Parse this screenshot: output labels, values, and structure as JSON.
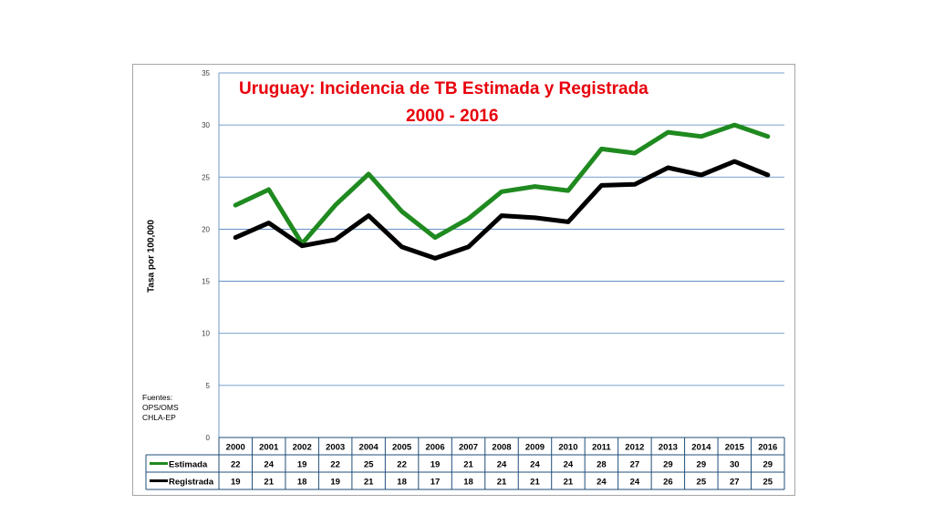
{
  "chart_data": {
    "type": "line",
    "title": "Uruguay: Incidencia de TB Estimada y Registrada",
    "subtitle": "2000 - 2016",
    "ylabel": "Tasa por 100,000",
    "xlabel": "",
    "ylim": [
      0,
      35
    ],
    "yticks": [
      "0",
      "5",
      "10",
      "15",
      "20",
      "25",
      "30",
      "35"
    ],
    "grid": true,
    "categories": [
      "2000",
      "2001",
      "2002",
      "2003",
      "2004",
      "2005",
      "2006",
      "2007",
      "2008",
      "2009",
      "2010",
      "2011",
      "2012",
      "2013",
      "2014",
      "2015",
      "2016"
    ],
    "series": [
      {
        "name": "Estimada",
        "color": "#1f8a1f",
        "values": [
          22.3,
          23.8,
          18.6,
          22.3,
          25.3,
          21.7,
          19.2,
          21.0,
          23.6,
          24.1,
          23.7,
          27.7,
          27.3,
          29.3,
          28.9,
          30.0,
          28.9
        ],
        "table_values": [
          "22",
          "24",
          "19",
          "22",
          "25",
          "22",
          "19",
          "21",
          "24",
          "24",
          "24",
          "28",
          "27",
          "29",
          "29",
          "30",
          "29"
        ]
      },
      {
        "name": "Registrada",
        "color": "#000000",
        "values": [
          19.2,
          20.6,
          18.4,
          19.0,
          21.3,
          18.3,
          17.2,
          18.3,
          21.3,
          21.1,
          20.7,
          24.2,
          24.3,
          25.9,
          25.2,
          26.5,
          25.2
        ],
        "table_values": [
          "19",
          "21",
          "18",
          "19",
          "21",
          "18",
          "17",
          "18",
          "21",
          "21",
          "21",
          "24",
          "24",
          "26",
          "25",
          "27",
          "25"
        ]
      }
    ],
    "legend": "data-table",
    "annotation": [
      "Fuentes:",
      "OPS/OMS",
      "CHLA-EP"
    ]
  }
}
